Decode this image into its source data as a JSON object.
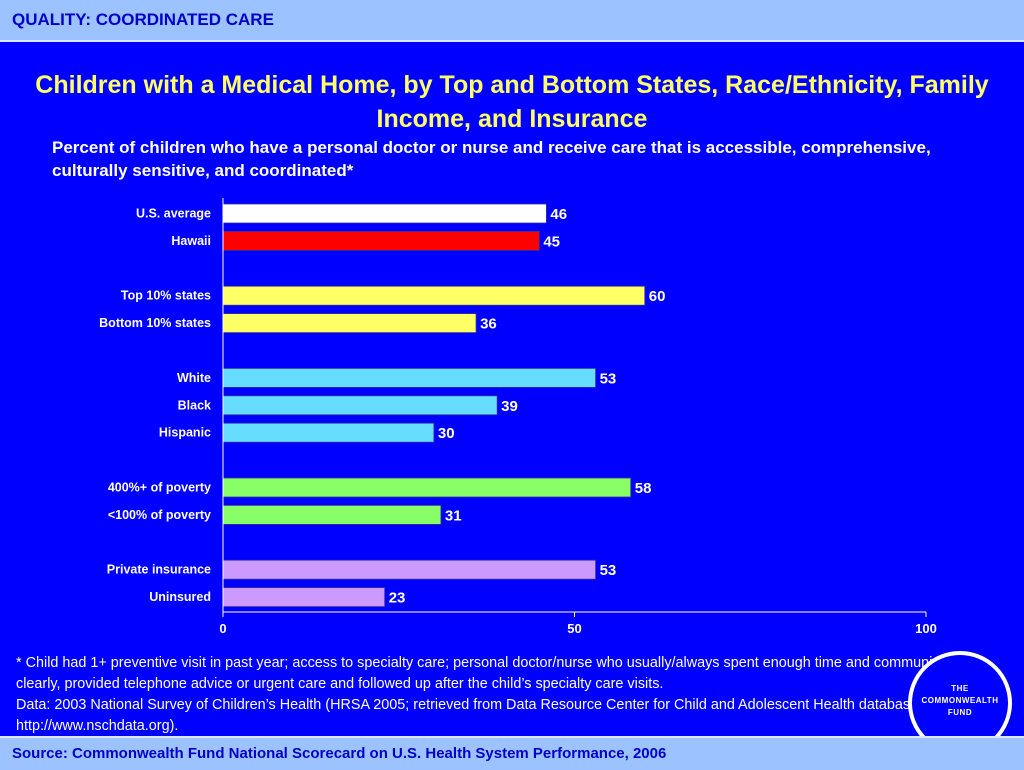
{
  "header": {
    "label": "QUALITY: COORDINATED CARE"
  },
  "title": "Children with a Medical Home, by Top and Bottom States, Race/Ethnicity, Family Income, and Insurance",
  "subtitle": "Percent of children who have a personal doctor or nurse and receive care that is accessible, comprehensive, culturally sensitive, and coordinated*",
  "footnote": {
    "line1": "* Child had 1+ preventive visit in past year; access to specialty care; personal doctor/nurse who usually/always spent enough time and communicated clearly, provided telephone advice or urgent care and followed up after the child’s specialty care visits.",
    "line2": "Data: 2003 National Survey of Children’s Health (HRSA 2005; retrieved from Data Resource Center for Child and Adolescent Health database at http://www.nschdata.org)."
  },
  "source": "Source: Commonwealth Fund National Scorecard on U.S. Health System Performance, 2006",
  "logo": {
    "text": "THE\nCOMMONWEALTH\nFUND"
  },
  "chart_data": {
    "type": "bar",
    "orientation": "horizontal",
    "xlim": [
      0,
      100
    ],
    "xticks": [
      0,
      50,
      100
    ],
    "grid": false,
    "legend": "none",
    "groups": [
      {
        "bars": [
          {
            "label": "U.S. average",
            "value": 46,
            "color": "#ffffff"
          },
          {
            "label": "Hawaii",
            "value": 45,
            "color": "#ff0000"
          }
        ]
      },
      {
        "bars": [
          {
            "label": "Top 10% states",
            "value": 60,
            "color": "#ffff66"
          },
          {
            "label": "Bottom 10% states",
            "value": 36,
            "color": "#ffff66"
          }
        ]
      },
      {
        "bars": [
          {
            "label": "White",
            "value": 53,
            "color": "#66ddff"
          },
          {
            "label": "Black",
            "value": 39,
            "color": "#66ddff"
          },
          {
            "label": "Hispanic",
            "value": 30,
            "color": "#66ddff"
          }
        ]
      },
      {
        "bars": [
          {
            "label": "400%+ of poverty",
            "value": 58,
            "color": "#88ff66"
          },
          {
            "label": "<100% of poverty",
            "value": 31,
            "color": "#88ff66"
          }
        ]
      },
      {
        "bars": [
          {
            "label": "Private insurance",
            "value": 53,
            "color": "#cc99ff"
          },
          {
            "label": "Uninsured",
            "value": 23,
            "color": "#cc99ff"
          }
        ]
      }
    ]
  }
}
